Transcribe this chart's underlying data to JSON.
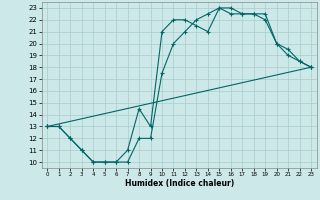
{
  "title": "",
  "xlabel": "Humidex (Indice chaleur)",
  "xlim": [
    -0.5,
    23.5
  ],
  "ylim": [
    9.5,
    23.5
  ],
  "xticks": [
    0,
    1,
    2,
    3,
    4,
    5,
    6,
    7,
    8,
    9,
    10,
    11,
    12,
    13,
    14,
    15,
    16,
    17,
    18,
    19,
    20,
    21,
    22,
    23
  ],
  "yticks": [
    10,
    11,
    12,
    13,
    14,
    15,
    16,
    17,
    18,
    19,
    20,
    21,
    22,
    23
  ],
  "background_color": "#cce8e8",
  "grid_color": "#aacccc",
  "line_color": "#006666",
  "line1_x": [
    0,
    1,
    2,
    3,
    4,
    5,
    6,
    7,
    8,
    9,
    10,
    11,
    12,
    13,
    14,
    15,
    16,
    17,
    18,
    19,
    20,
    21,
    22,
    23
  ],
  "line1_y": [
    13,
    13,
    12,
    11,
    10,
    10,
    10,
    11,
    14.5,
    13,
    21,
    22,
    22,
    21.5,
    21,
    23,
    23,
    22.5,
    22.5,
    22.5,
    20,
    19.5,
    18.5,
    18
  ],
  "line2_x": [
    0,
    1,
    2,
    3,
    4,
    5,
    6,
    7,
    8,
    9,
    10,
    11,
    12,
    13,
    14,
    15,
    16,
    17,
    18,
    19,
    20,
    21,
    22,
    23
  ],
  "line2_y": [
    13,
    13,
    12,
    11,
    10,
    10,
    10,
    10,
    12,
    12,
    17.5,
    20,
    21,
    22,
    22.5,
    23,
    22.5,
    22.5,
    22.5,
    22,
    20,
    19,
    18.5,
    18
  ],
  "line3_x": [
    0,
    23
  ],
  "line3_y": [
    13,
    18
  ],
  "marker_style": "+",
  "marker_size": 3,
  "line_width": 0.8
}
